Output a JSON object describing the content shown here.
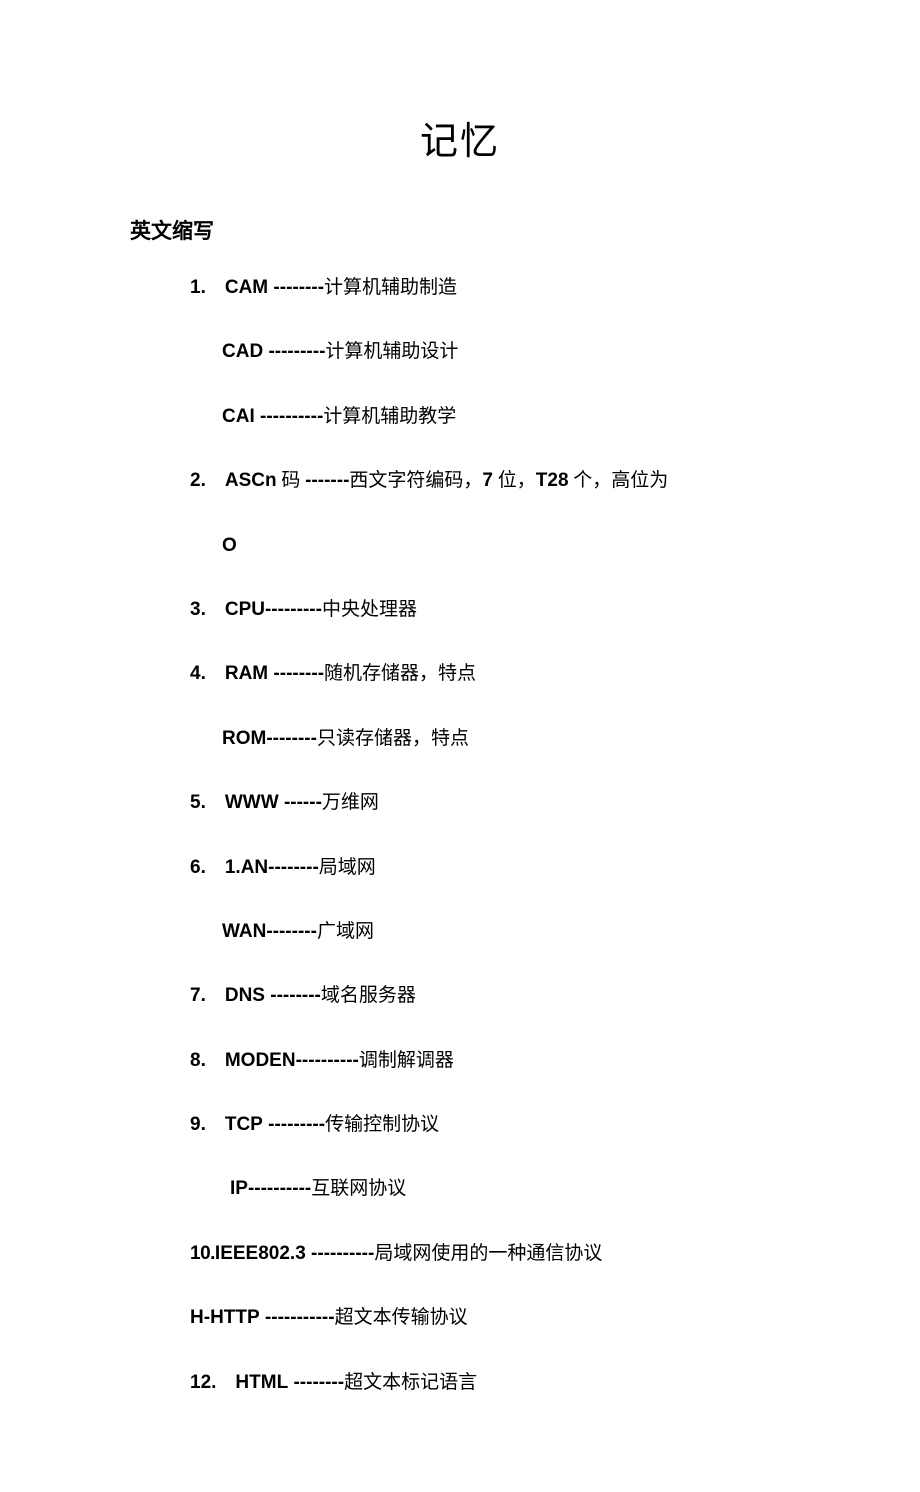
{
  "title": "记忆",
  "section": "英文缩写",
  "items": {
    "i1": {
      "num": "1.",
      "abbr": "CAM",
      "dash": " --------",
      "def": "计算机辅助制造"
    },
    "i1a": {
      "abbr": "CAD",
      "dash": " ---------",
      "def": "计算机辅助设计"
    },
    "i1b": {
      "abbr": "CAI",
      "dash": " ----------",
      "def": "计算机辅助教学"
    },
    "i2": {
      "num": "2.",
      "abbr": "ASCn",
      "mid": " 码 ",
      "dash": "-------",
      "def": "西文字符编码，",
      "bold2": "7",
      "def2": " 位，",
      "bold3": "T28",
      "def3": " 个，高位为"
    },
    "i2b": {
      "abbr": "O"
    },
    "i3": {
      "num": "3.",
      "abbr": "CPU",
      "dash": "---------",
      "def": "中央处理器"
    },
    "i4": {
      "num": "4.",
      "abbr": "RAM",
      "dash": " --------",
      "def": "随机存储器，特点"
    },
    "i4a": {
      "abbr": "ROM",
      "dash": "--------",
      "def": "只读存储器，特点"
    },
    "i5": {
      "num": "5.",
      "abbr": "WWW",
      "dash": " ------",
      "def": "万维网"
    },
    "i6": {
      "num": "6.",
      "abbr": "1.AN",
      "dash": "--------",
      "def": "局域网"
    },
    "i6a": {
      "abbr": "WAN",
      "dash": "--------",
      "def": "广域网"
    },
    "i7": {
      "num": "7.",
      "abbr": "DNS",
      "dash": " --------",
      "def": "域名服务器"
    },
    "i8": {
      "num": "8.",
      "abbr": "MODEN",
      "dash": "----------",
      "def": "调制解调器"
    },
    "i9": {
      "num": "9.",
      "abbr": "TCP",
      "dash": " ---------",
      "def": "传输控制协议"
    },
    "i9a": {
      "abbr": "IP",
      "dash": "----------",
      "def": "互联网协议"
    },
    "i10": {
      "num": "10.",
      "abbr": "IEEE802.3",
      "dash": " ----------",
      "def": "局域网使用的一种通信协议"
    },
    "i11": {
      "num": "H-",
      "abbr": "HTTP",
      "dash": " -----------",
      "def": "超文本传输协议"
    },
    "i12": {
      "num": "12.",
      "abbr": "HTML",
      "dash": " --------",
      "def": "超文本标记语言"
    }
  }
}
